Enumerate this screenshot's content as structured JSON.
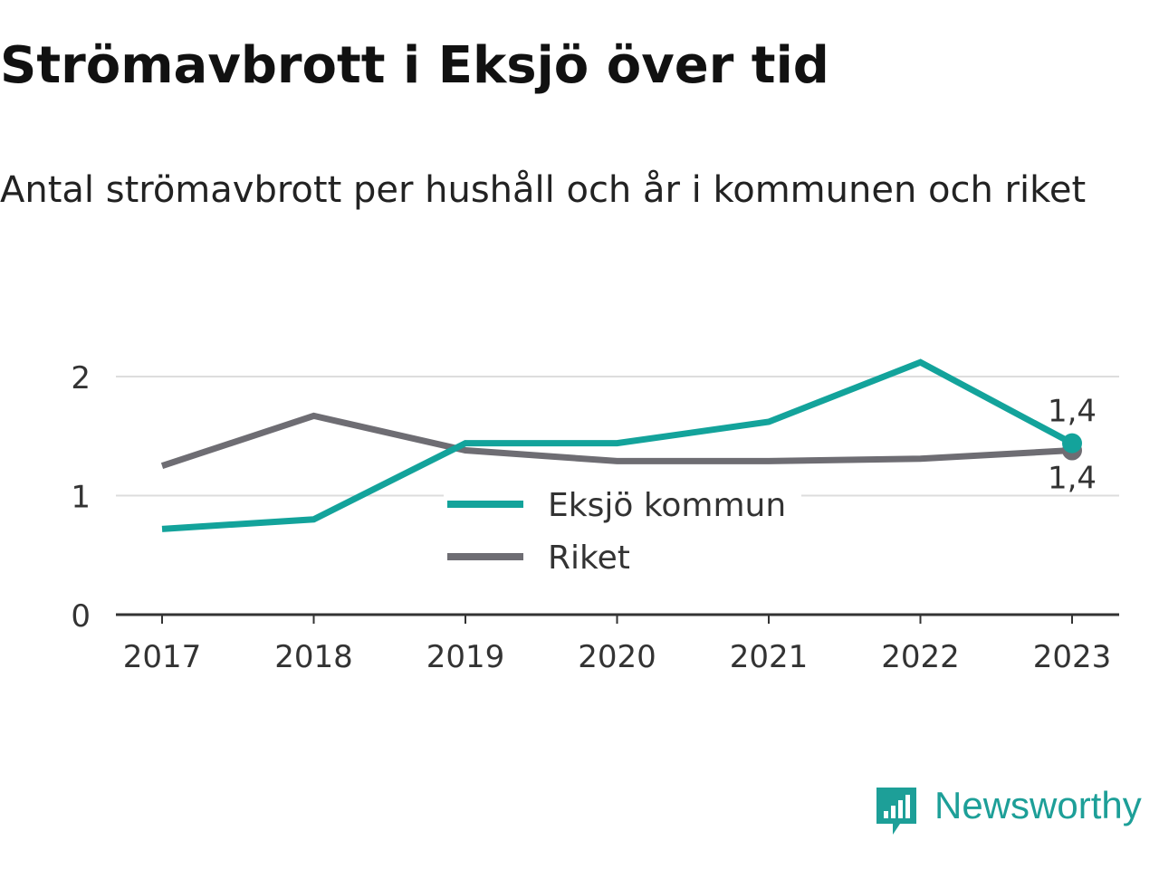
{
  "title": "Strömavbrott i Eksjö över tid",
  "subtitle": "Antal strömavbrott per hushåll och år i kommunen och riket",
  "brand": "Newsworthy",
  "chart_data": {
    "type": "line",
    "x": [
      "2017",
      "2018",
      "2019",
      "2020",
      "2021",
      "2022",
      "2023"
    ],
    "series": [
      {
        "name": "Eksjö kommun",
        "color": "#13a39b",
        "values": [
          0.72,
          0.8,
          1.44,
          1.44,
          1.62,
          2.12,
          1.44
        ],
        "end_label": "1,4"
      },
      {
        "name": "Riket",
        "color": "#6e6d73",
        "values": [
          1.25,
          1.67,
          1.38,
          1.29,
          1.29,
          1.31,
          1.38
        ],
        "end_label": "1,4"
      }
    ],
    "ylim": [
      0,
      2
    ],
    "yticks": [
      {
        "value": 0,
        "label": "0"
      },
      {
        "value": 1,
        "label": "1"
      },
      {
        "value": 2,
        "label": "2"
      }
    ],
    "grid": true,
    "legend_position": "center",
    "xlabel": "",
    "ylabel": ""
  }
}
